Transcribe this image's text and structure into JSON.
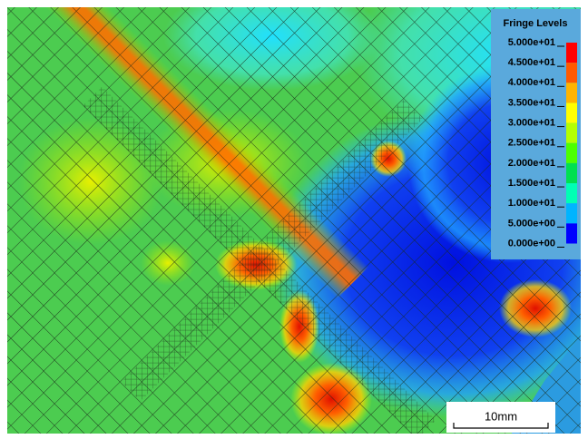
{
  "legend": {
    "title": "Fringe Levels",
    "levels": [
      "5.000e+01",
      "4.500e+01",
      "4.000e+01",
      "3.500e+01",
      "3.000e+01",
      "2.500e+01",
      "2.000e+01",
      "1.500e+01",
      "1.000e+01",
      "5.000e+00",
      "0.000e+00"
    ],
    "colors": [
      "#ff0000",
      "#ff5a00",
      "#ffb400",
      "#ffff00",
      "#b4ff00",
      "#4cff00",
      "#00e050",
      "#00ffb4",
      "#00b4ff",
      "#0000ff"
    ]
  },
  "scale_bar": {
    "label": "10mm"
  }
}
